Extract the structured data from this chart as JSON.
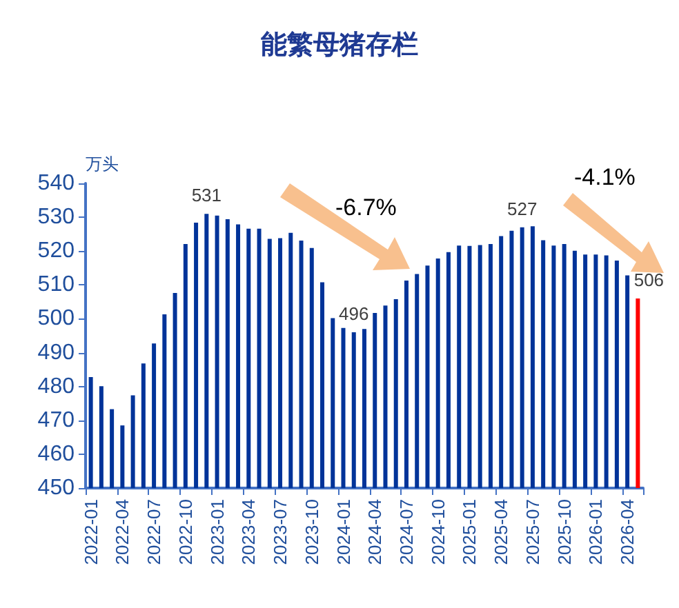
{
  "chart_data": {
    "type": "bar",
    "title": "能繁母猪存栏",
    "ylabel": "万头",
    "categories": [
      "2022-01",
      null,
      null,
      "2022-04",
      null,
      null,
      "2022-07",
      null,
      null,
      "2022-10",
      null,
      null,
      "2023-01",
      null,
      null,
      "2023-04",
      null,
      null,
      "2023-07",
      null,
      null,
      "2023-10",
      null,
      null,
      "2024-01",
      null,
      null,
      "2024-04",
      null,
      null,
      "2024-07",
      null,
      null,
      "2024-10",
      null,
      null,
      "2025-01",
      null,
      null,
      "2025-04",
      null,
      null,
      "2025-07",
      null,
      null,
      "2025-10",
      null,
      null,
      "2026-01",
      null,
      null,
      "2026-04",
      null
    ],
    "values": [
      482.8,
      480.1,
      473.3,
      468.5,
      477.4,
      486.8,
      492.7,
      501.3,
      507.6,
      522.1,
      528.4,
      531,
      530.5,
      529.4,
      527.9,
      526.6,
      526.6,
      523.6,
      523.8,
      525.4,
      523.1,
      520.9,
      510.8,
      500.2,
      497.3,
      496,
      497,
      501.7,
      503.9,
      505.8,
      511.3,
      513.2,
      515.7,
      517.8,
      519.7,
      521.6,
      521.5,
      521.8,
      522.1,
      524.4,
      526,
      527,
      527.3,
      523.2,
      521.6,
      522.1,
      520.1,
      519,
      519,
      518.7,
      517.2,
      512.8,
      506
    ],
    "value_labels": [
      null,
      null,
      null,
      null,
      null,
      null,
      null,
      null,
      null,
      null,
      null,
      "531",
      null,
      null,
      null,
      null,
      null,
      null,
      null,
      null,
      null,
      null,
      null,
      null,
      null,
      "496",
      null,
      null,
      null,
      null,
      null,
      null,
      null,
      null,
      null,
      null,
      null,
      null,
      null,
      null,
      null,
      "527",
      null,
      null,
      null,
      null,
      null,
      null,
      null,
      null,
      null,
      null,
      "506"
    ],
    "colors": [
      "#003399",
      "#003399",
      "#003399",
      "#003399",
      "#003399",
      "#003399",
      "#003399",
      "#003399",
      "#003399",
      "#003399",
      "#003399",
      "#003399",
      "#003399",
      "#003399",
      "#003399",
      "#003399",
      "#003399",
      "#003399",
      "#003399",
      "#003399",
      "#003399",
      "#003399",
      "#003399",
      "#003399",
      "#003399",
      "#003399",
      "#003399",
      "#003399",
      "#003399",
      "#003399",
      "#003399",
      "#003399",
      "#003399",
      "#003399",
      "#003399",
      "#003399",
      "#003399",
      "#003399",
      "#003399",
      "#003399",
      "#003399",
      "#003399",
      "#003399",
      "#003399",
      "#003399",
      "#003399",
      "#003399",
      "#003399",
      "#003399",
      "#003399",
      "#003399",
      "#003399",
      "#ff0000"
    ],
    "ylim": [
      450,
      540
    ],
    "yticks": [
      450,
      460,
      470,
      480,
      490,
      500,
      510,
      520,
      530,
      540
    ],
    "grid": false,
    "annotations": [
      "-6.7%",
      "-4.1%"
    ]
  }
}
